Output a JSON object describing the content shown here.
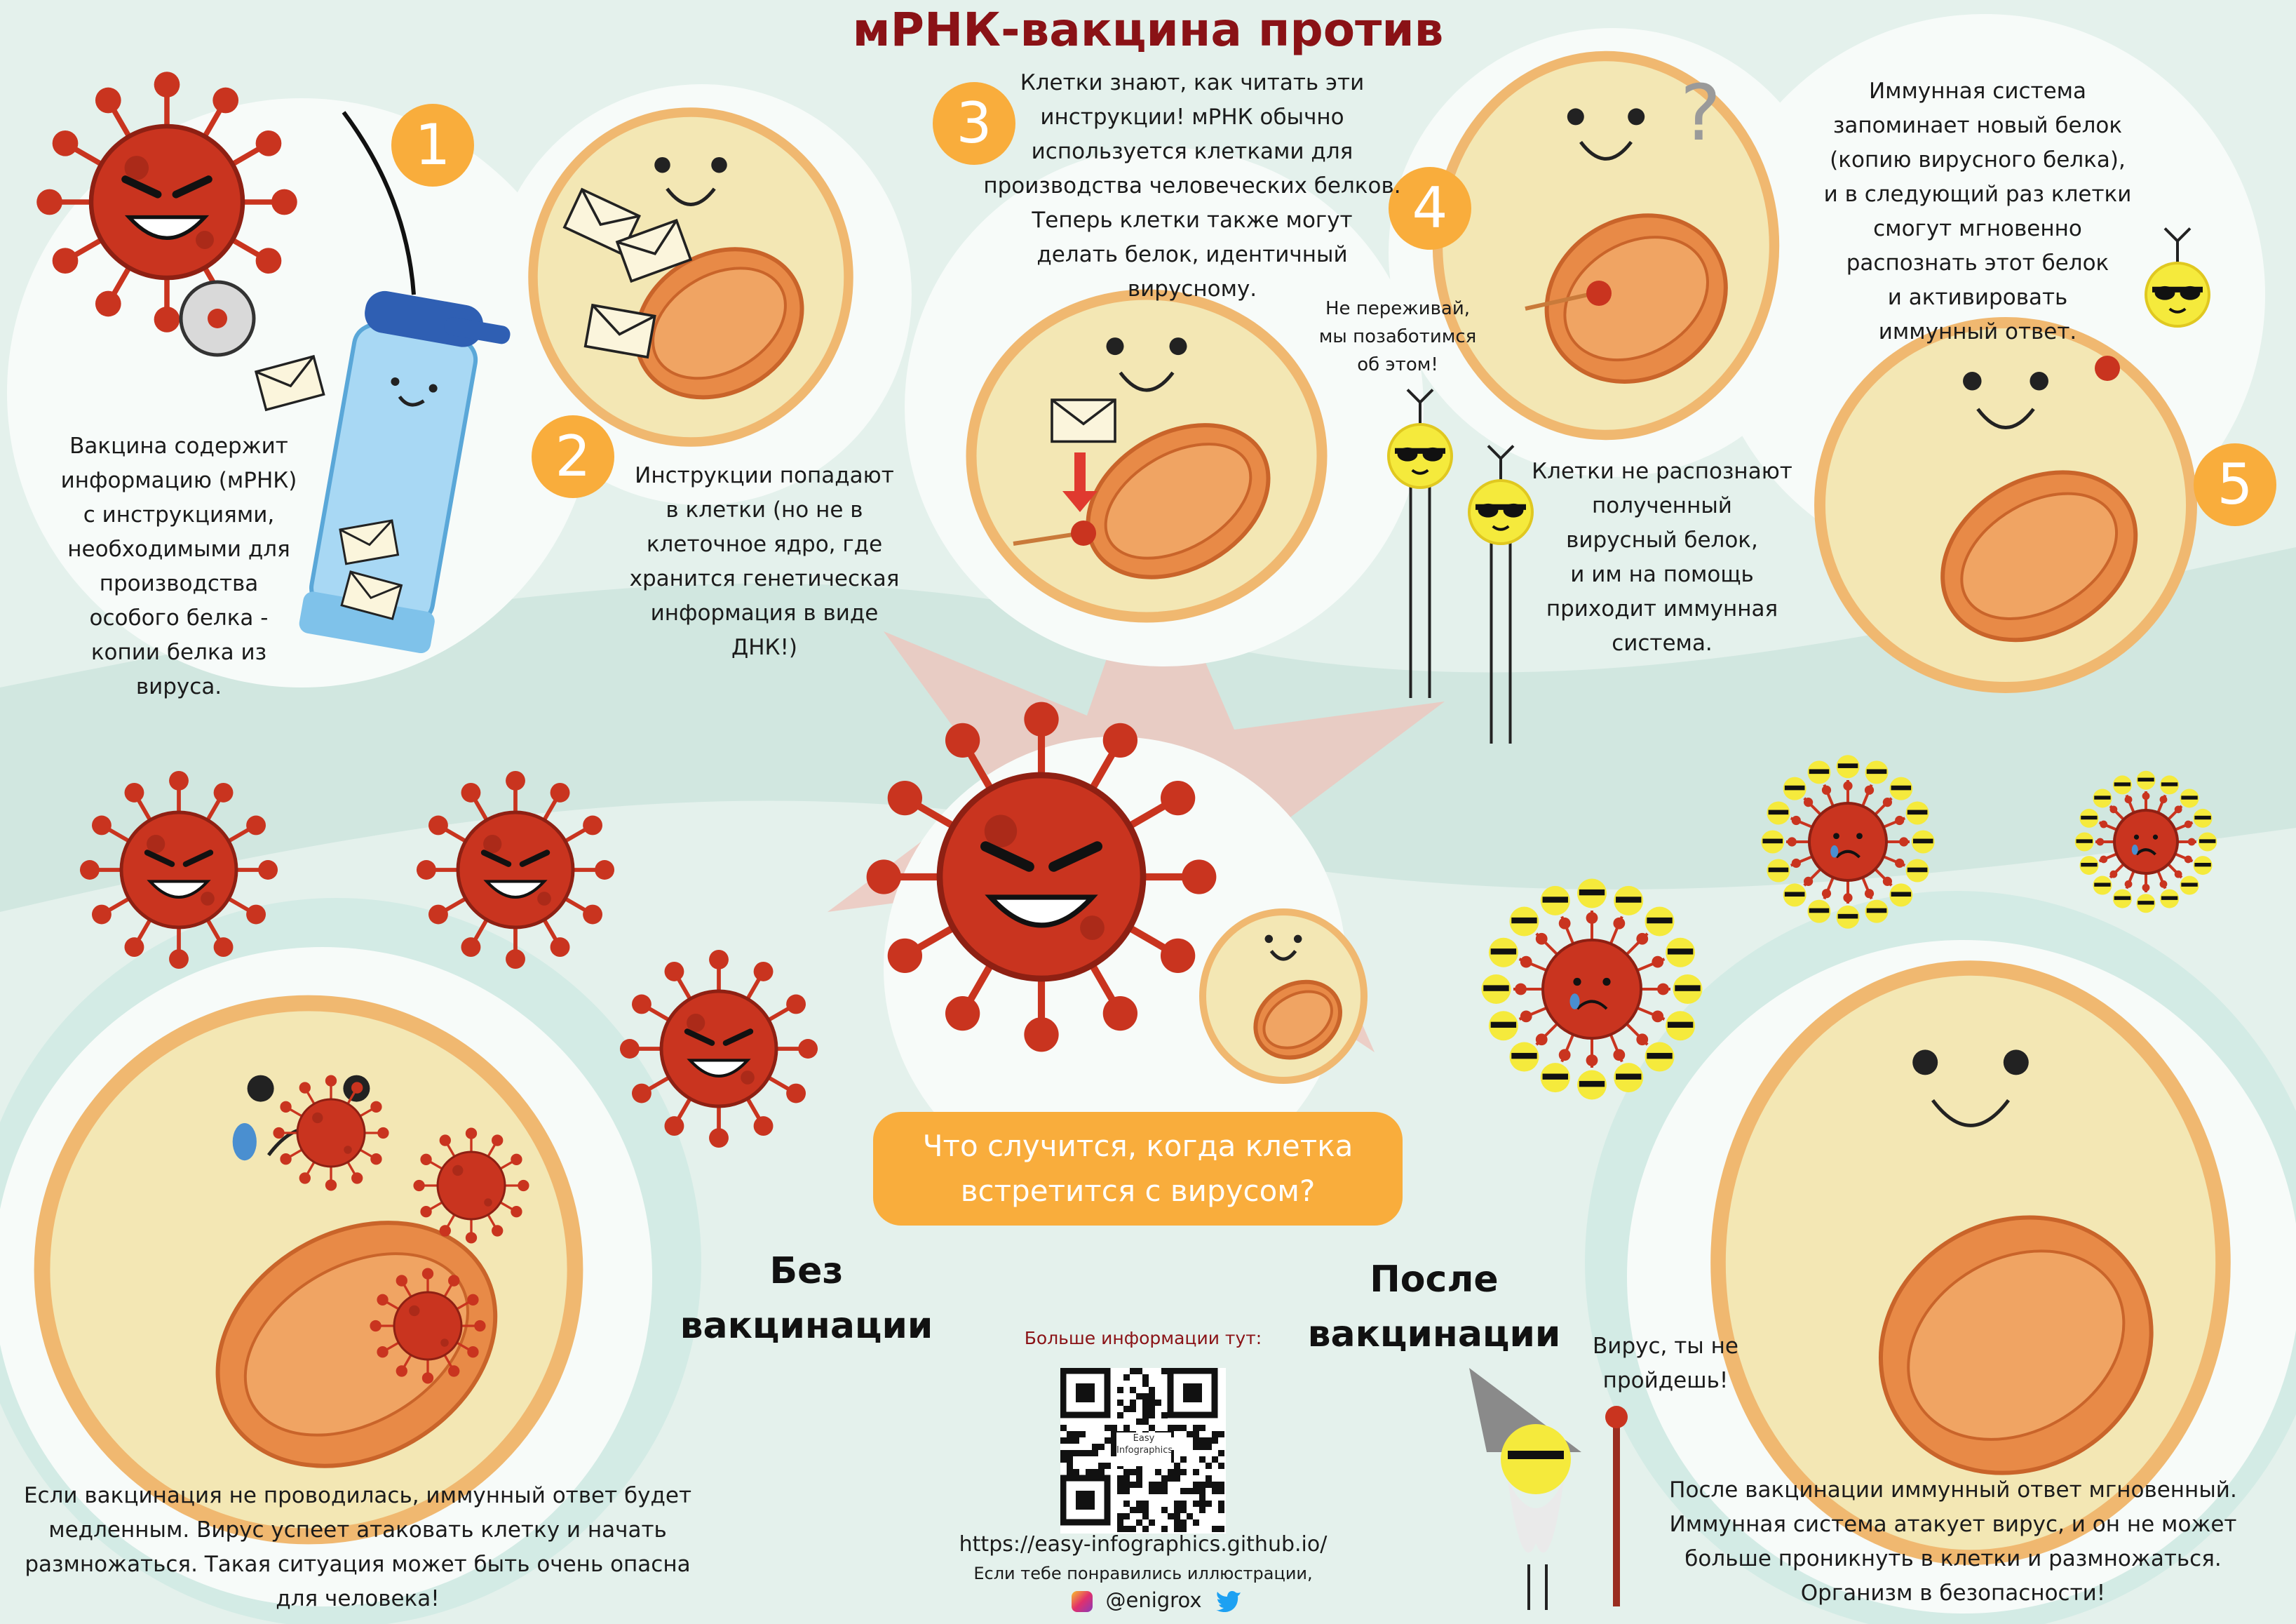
{
  "title": "мРНК-вакцина против",
  "steps": {
    "one": "1",
    "two": "2",
    "three": "3",
    "four": "4",
    "five": "5"
  },
  "texts": {
    "vaccine": [
      "Вакцина содержит",
      "информацию (мРНК)",
      "с инструкциями,",
      "необходимыми для",
      "производства",
      "особого белка -",
      "копии белка из",
      "вируса."
    ],
    "instructions": [
      "Инструкции попадают",
      "в клетки (но не в",
      "клеточное ядро, где",
      "хранится генетическая",
      "информация в виде",
      "ДНК!)"
    ],
    "cells_know": [
      "Клетки знают, как читать эти",
      "инструкции! мРНК обычно",
      "используется клетками для",
      "производства человеческих белков.",
      "Теперь клетки также могут",
      "делать белок, идентичный",
      "вирусному."
    ],
    "not_recognize": [
      "Клетки не распознают",
      "полученный",
      "вирусный белок,",
      "и им на помощь",
      "приходит иммунная",
      "система."
    ],
    "dont_worry": [
      "Не переживай,",
      "мы позаботимся",
      "об этом!"
    ],
    "immune_memory": [
      "Иммунная система",
      "запоминает новый белок",
      "(копию вирусного белка),",
      "и в следующий раз клетки",
      "смогут мгновенно",
      "распознать этот белок",
      "и активировать",
      "иммунный ответ."
    ],
    "question_mark": "?",
    "without_vaccination": [
      "Без",
      "вакцинации"
    ],
    "after_vaccination": [
      "После",
      "вакцинации"
    ],
    "callout": [
      "Что случится, когда клетка",
      "встретится с вирусом?"
    ],
    "without_desc": [
      "Если вакцинация не проводилась, иммунный ответ будет",
      "медленным. Вирус успеет атаковать клетку и начать",
      "размножаться. Такая ситуация может быть очень опасна",
      "для человека!"
    ],
    "after_desc": [
      "После вакцинации иммунный ответ мгновенный.",
      "Иммунная система атакует вирус, и он не может",
      "больше проникнуть в клетки и размножаться.",
      "Организм в безопасности!"
    ],
    "wizard_speech": [
      "Вирус, ты не",
      "пройдешь!"
    ]
  },
  "footer": {
    "more_info": "Больше информации тут:",
    "url": "https://easy-infographics.github.io/",
    "liked": "Если тебе понравились иллюстрации,",
    "handle": "@enigrox",
    "qr_logo": [
      "Easy",
      "Infographics"
    ]
  },
  "colors": {
    "title": "#8a1216",
    "accent": "#f9ad3c",
    "virus": "#c9341f",
    "virus_dark": "#8e2013",
    "cell_fill": "#f3e7b4",
    "cell_border": "#f0b870",
    "mito": "#e88a47",
    "immune": "#f5ea3c",
    "bg": "#e4f1ec",
    "bg_circle": "#f7fbf9"
  },
  "icons": [
    "envelope-icon",
    "syringe-icon",
    "virus-icon",
    "cell-icon",
    "qr-code-icon",
    "instagram-icon",
    "twitter-icon",
    "arrow-down-icon",
    "wizard-icon"
  ]
}
